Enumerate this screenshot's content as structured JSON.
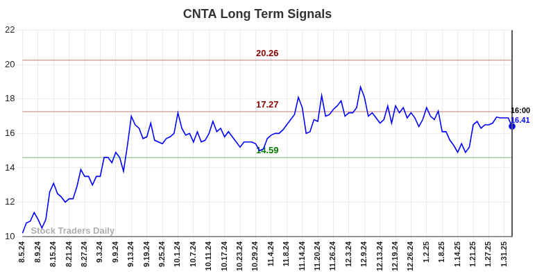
{
  "chart_data": {
    "type": "line",
    "title": "CNTA Long Term Signals",
    "categories": [
      "8.5.24",
      null,
      null,
      null,
      "8.9.24",
      null,
      null,
      null,
      "8.15.24",
      null,
      null,
      null,
      "8.21.24",
      null,
      null,
      null,
      "8.27.24",
      null,
      null,
      null,
      "9.3.24",
      null,
      null,
      null,
      "9.9.24",
      null,
      null,
      null,
      "9.13.24",
      null,
      null,
      null,
      "9.19.24",
      null,
      null,
      null,
      "9.25.24",
      null,
      null,
      null,
      "10.1.24",
      null,
      null,
      null,
      "10.7.24",
      null,
      null,
      null,
      "10.11.24",
      null,
      null,
      null,
      "10.17.24",
      null,
      null,
      null,
      "10.23.24",
      null,
      null,
      null,
      "10.29.24",
      null,
      null,
      null,
      "11.4.24",
      null,
      null,
      null,
      "11.8.24",
      null,
      null,
      null,
      "11.14.24",
      null,
      null,
      null,
      "11.20.24",
      null,
      null,
      null,
      "11.26.24",
      null,
      null,
      null,
      "12.3.24",
      null,
      null,
      null,
      "12.9.24",
      null,
      null,
      null,
      "12.13.24",
      null,
      null,
      null,
      "12.19.24",
      null,
      null,
      null,
      "12.26.24",
      null,
      null,
      null,
      "1.2.25",
      null,
      null,
      null,
      "1.8.25",
      null,
      null,
      null,
      "1.14.25",
      null,
      null,
      null,
      "1.21.25",
      null,
      null,
      null,
      "1.27.25",
      null,
      null,
      null,
      "1.31.25",
      null,
      null
    ],
    "values": [
      10.2,
      10.8,
      10.9,
      11.4,
      11.0,
      10.5,
      11.0,
      12.6,
      13.1,
      12.5,
      12.3,
      12.0,
      12.2,
      12.2,
      12.9,
      13.9,
      13.5,
      13.5,
      13.0,
      13.5,
      13.5,
      14.6,
      14.6,
      14.3,
      14.9,
      14.6,
      13.8,
      15.3,
      17.0,
      16.5,
      16.3,
      15.7,
      15.8,
      16.6,
      15.6,
      15.5,
      15.4,
      15.7,
      15.8,
      16.0,
      17.2,
      16.3,
      15.9,
      16.0,
      15.5,
      16.1,
      15.5,
      15.6,
      16.0,
      16.7,
      16.1,
      16.3,
      15.8,
      16.1,
      15.8,
      15.5,
      15.2,
      15.5,
      15.5,
      15.5,
      15.4,
      15.0,
      15.1,
      15.7,
      15.9,
      16.0,
      16.0,
      16.2,
      16.5,
      16.8,
      17.1,
      18.1,
      17.5,
      16.0,
      16.1,
      16.8,
      16.7,
      18.2,
      17.0,
      17.1,
      17.4,
      17.6,
      17.9,
      17.0,
      17.2,
      17.2,
      17.5,
      18.7,
      18.1,
      17.0,
      17.2,
      16.9,
      16.6,
      16.8,
      17.6,
      16.6,
      17.6,
      17.2,
      17.5,
      16.9,
      17.2,
      16.9,
      16.4,
      16.8,
      17.5,
      17.0,
      16.8,
      17.3,
      16.1,
      16.1,
      15.6,
      15.3,
      14.9,
      15.4,
      14.9,
      15.2,
      16.5,
      16.7,
      16.3,
      16.5,
      16.5,
      16.6,
      16.95,
      16.9,
      16.9,
      16.9,
      16.41
    ],
    "color": "#0000ff",
    "ylim": [
      10,
      22
    ],
    "yticks": [
      10,
      12,
      14,
      16,
      18,
      20,
      22
    ],
    "grid": true,
    "reference_lines": [
      {
        "value": 20.26,
        "label": "20.26",
        "color": "#8b0000"
      },
      {
        "value": 17.27,
        "label": "17.27",
        "color": "#8b0000"
      },
      {
        "value": 14.59,
        "label": "14.59",
        "color": "#007a00"
      }
    ],
    "last_point_label": "16:00",
    "watermark": "Stock Traders Daily"
  }
}
